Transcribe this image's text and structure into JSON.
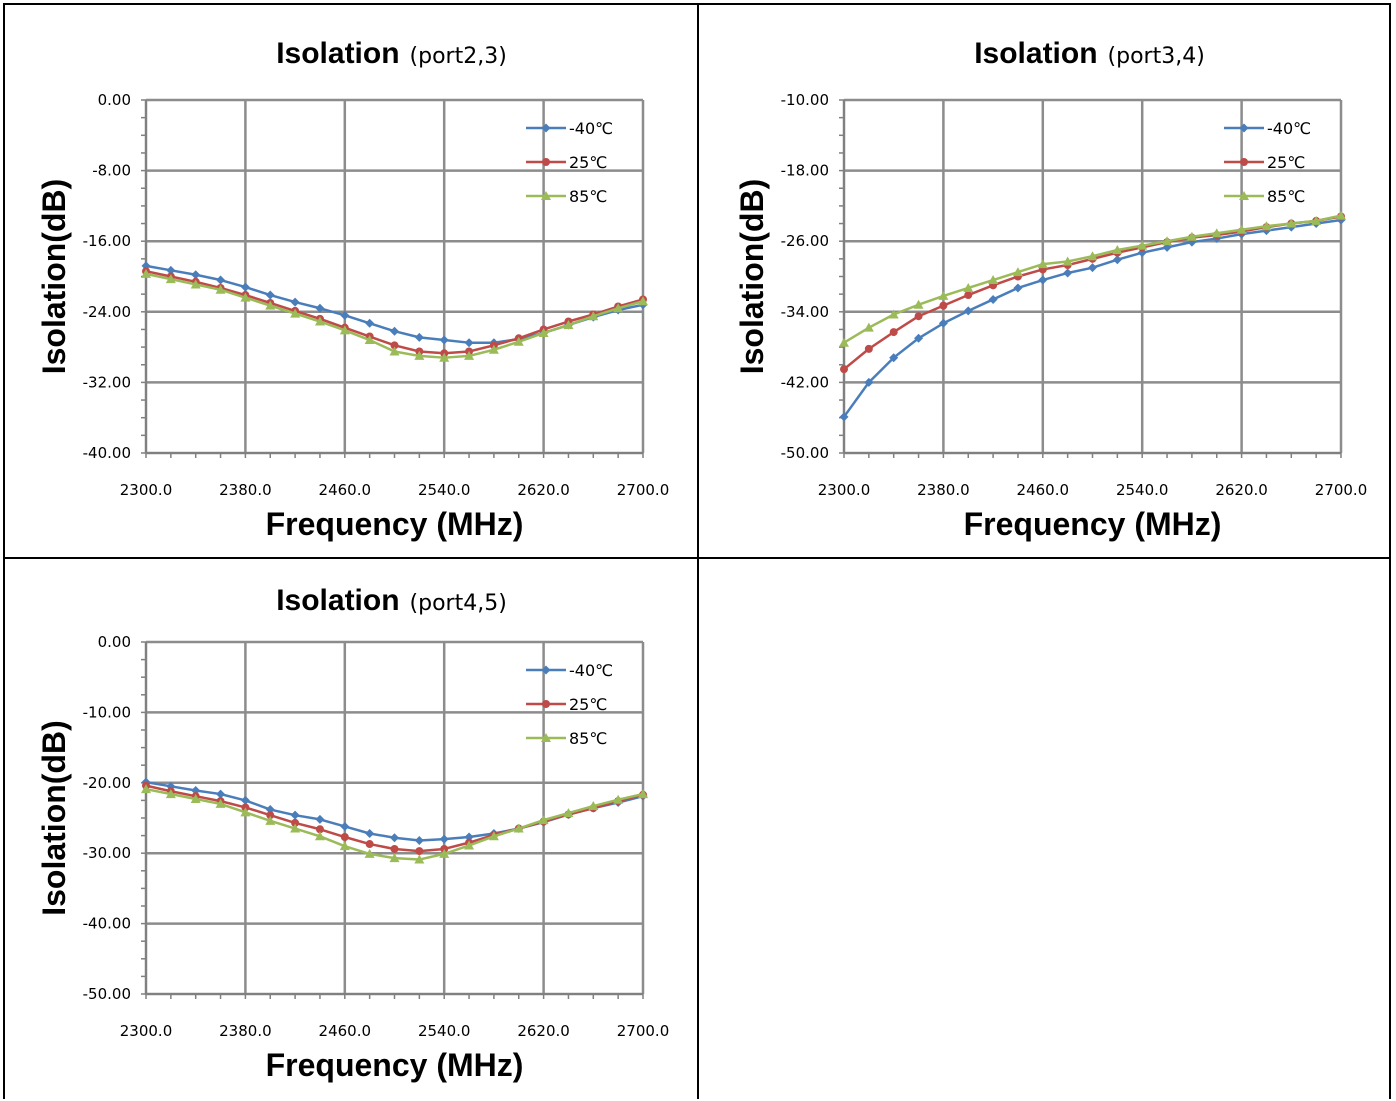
{
  "chart_data": [
    {
      "type": "line",
      "title": "Isolation",
      "subtitle": "(port2,3)",
      "xlabel": "Frequency (MHz)",
      "ylabel": "Isolation(dB)",
      "xlim": [
        2300,
        2700
      ],
      "ylim": [
        -40,
        0
      ],
      "xticks": [
        "2300.0",
        "2380.0",
        "2460.0",
        "2540.0",
        "2620.0",
        "2700.0"
      ],
      "yticks": [
        "0.00",
        "-8.00",
        "-16.00",
        "-24.00",
        "-32.00",
        "-40.00"
      ],
      "grid": true,
      "legend_position": "top-right",
      "x": [
        2300,
        2320,
        2340,
        2360,
        2380,
        2400,
        2420,
        2440,
        2460,
        2480,
        2500,
        2520,
        2540,
        2560,
        2580,
        2600,
        2620,
        2640,
        2660,
        2680,
        2700
      ],
      "series": [
        {
          "name": "-40℃",
          "color": "#4a7ebb",
          "marker": "diamond",
          "values": [
            -18.8,
            -19.3,
            -19.8,
            -20.4,
            -21.2,
            -22.1,
            -22.9,
            -23.6,
            -24.4,
            -25.3,
            -26.2,
            -26.9,
            -27.2,
            -27.5,
            -27.5,
            -27.1,
            -26.4,
            -25.5,
            -24.6,
            -23.8,
            -23.2
          ]
        },
        {
          "name": "25℃",
          "color": "#be4b48",
          "marker": "circle",
          "values": [
            -19.4,
            -20.0,
            -20.6,
            -21.3,
            -22.1,
            -23.0,
            -23.9,
            -24.8,
            -25.8,
            -26.8,
            -27.8,
            -28.5,
            -28.7,
            -28.5,
            -27.8,
            -27.0,
            -26.0,
            -25.1,
            -24.3,
            -23.4,
            -22.6
          ]
        },
        {
          "name": "85℃",
          "color": "#9bbb59",
          "marker": "triangle",
          "values": [
            -19.7,
            -20.3,
            -20.9,
            -21.5,
            -22.4,
            -23.3,
            -24.2,
            -25.1,
            -26.1,
            -27.2,
            -28.5,
            -29.0,
            -29.2,
            -29.0,
            -28.3,
            -27.4,
            -26.4,
            -25.5,
            -24.5,
            -23.6,
            -22.8
          ]
        }
      ]
    },
    {
      "type": "line",
      "title": "Isolation",
      "subtitle": "(port3,4)",
      "xlabel": "Frequency (MHz)",
      "ylabel": "Isolation(dB)",
      "xlim": [
        2300,
        2700
      ],
      "ylim": [
        -50,
        -10
      ],
      "xticks": [
        "2300.0",
        "2380.0",
        "2460.0",
        "2540.0",
        "2620.0",
        "2700.0"
      ],
      "yticks": [
        "-10.00",
        "-18.00",
        "-26.00",
        "-34.00",
        "-42.00",
        "-50.00"
      ],
      "grid": true,
      "legend_position": "top-right",
      "x": [
        2300,
        2320,
        2340,
        2360,
        2380,
        2400,
        2420,
        2440,
        2460,
        2480,
        2500,
        2520,
        2540,
        2560,
        2580,
        2600,
        2620,
        2640,
        2660,
        2680,
        2700
      ],
      "series": [
        {
          "name": "-40℃",
          "color": "#4a7ebb",
          "marker": "diamond",
          "values": [
            -45.9,
            -42.0,
            -39.2,
            -37.0,
            -35.3,
            -33.9,
            -32.6,
            -31.3,
            -30.4,
            -29.6,
            -29.0,
            -28.1,
            -27.3,
            -26.7,
            -26.1,
            -25.7,
            -25.2,
            -24.8,
            -24.4,
            -24.0,
            -23.6
          ]
        },
        {
          "name": "25℃",
          "color": "#be4b48",
          "marker": "circle",
          "values": [
            -40.5,
            -38.2,
            -36.3,
            -34.5,
            -33.3,
            -32.1,
            -31.0,
            -30.0,
            -29.2,
            -28.7,
            -28.0,
            -27.3,
            -26.7,
            -26.1,
            -25.6,
            -25.3,
            -24.9,
            -24.4,
            -24.0,
            -23.7,
            -23.2
          ]
        },
        {
          "name": "85℃",
          "color": "#9bbb59",
          "marker": "triangle",
          "values": [
            -37.5,
            -35.8,
            -34.3,
            -33.2,
            -32.2,
            -31.3,
            -30.4,
            -29.5,
            -28.6,
            -28.3,
            -27.7,
            -27.0,
            -26.5,
            -26.0,
            -25.5,
            -25.1,
            -24.7,
            -24.3,
            -24.0,
            -23.7,
            -23.1
          ]
        }
      ]
    },
    {
      "type": "line",
      "title": "Isolation",
      "subtitle": "(port4,5)",
      "xlabel": "Frequency (MHz)",
      "ylabel": "Isolation(dB)",
      "xlim": [
        2300,
        2700
      ],
      "ylim": [
        -50,
        0
      ],
      "xticks": [
        "2300.0",
        "2380.0",
        "2460.0",
        "2540.0",
        "2620.0",
        "2700.0"
      ],
      "yticks": [
        "0.00",
        "-10.00",
        "-20.00",
        "-30.00",
        "-40.00",
        "-50.00"
      ],
      "grid": true,
      "legend_position": "top-right",
      "x": [
        2300,
        2320,
        2340,
        2360,
        2380,
        2400,
        2420,
        2440,
        2460,
        2480,
        2500,
        2520,
        2540,
        2560,
        2580,
        2600,
        2620,
        2640,
        2660,
        2680,
        2700
      ],
      "series": [
        {
          "name": "-40℃",
          "color": "#4a7ebb",
          "marker": "diamond",
          "values": [
            -19.9,
            -20.5,
            -21.1,
            -21.6,
            -22.5,
            -23.8,
            -24.6,
            -25.2,
            -26.2,
            -27.2,
            -27.8,
            -28.2,
            -28.0,
            -27.7,
            -27.2,
            -26.5,
            -25.6,
            -24.5,
            -23.6,
            -22.8,
            -21.9
          ]
        },
        {
          "name": "25℃",
          "color": "#be4b48",
          "marker": "circle",
          "values": [
            -20.4,
            -21.2,
            -21.9,
            -22.6,
            -23.5,
            -24.6,
            -25.7,
            -26.6,
            -27.7,
            -28.7,
            -29.4,
            -29.7,
            -29.4,
            -28.5,
            -27.4,
            -26.5,
            -25.5,
            -24.5,
            -23.6,
            -22.6,
            -21.7
          ]
        },
        {
          "name": "85℃",
          "color": "#9bbb59",
          "marker": "triangle",
          "values": [
            -20.9,
            -21.6,
            -22.3,
            -23.0,
            -24.2,
            -25.4,
            -26.5,
            -27.6,
            -29.0,
            -30.1,
            -30.7,
            -30.9,
            -30.1,
            -28.9,
            -27.6,
            -26.5,
            -25.3,
            -24.3,
            -23.3,
            -22.4,
            -21.6
          ]
        }
      ]
    }
  ]
}
